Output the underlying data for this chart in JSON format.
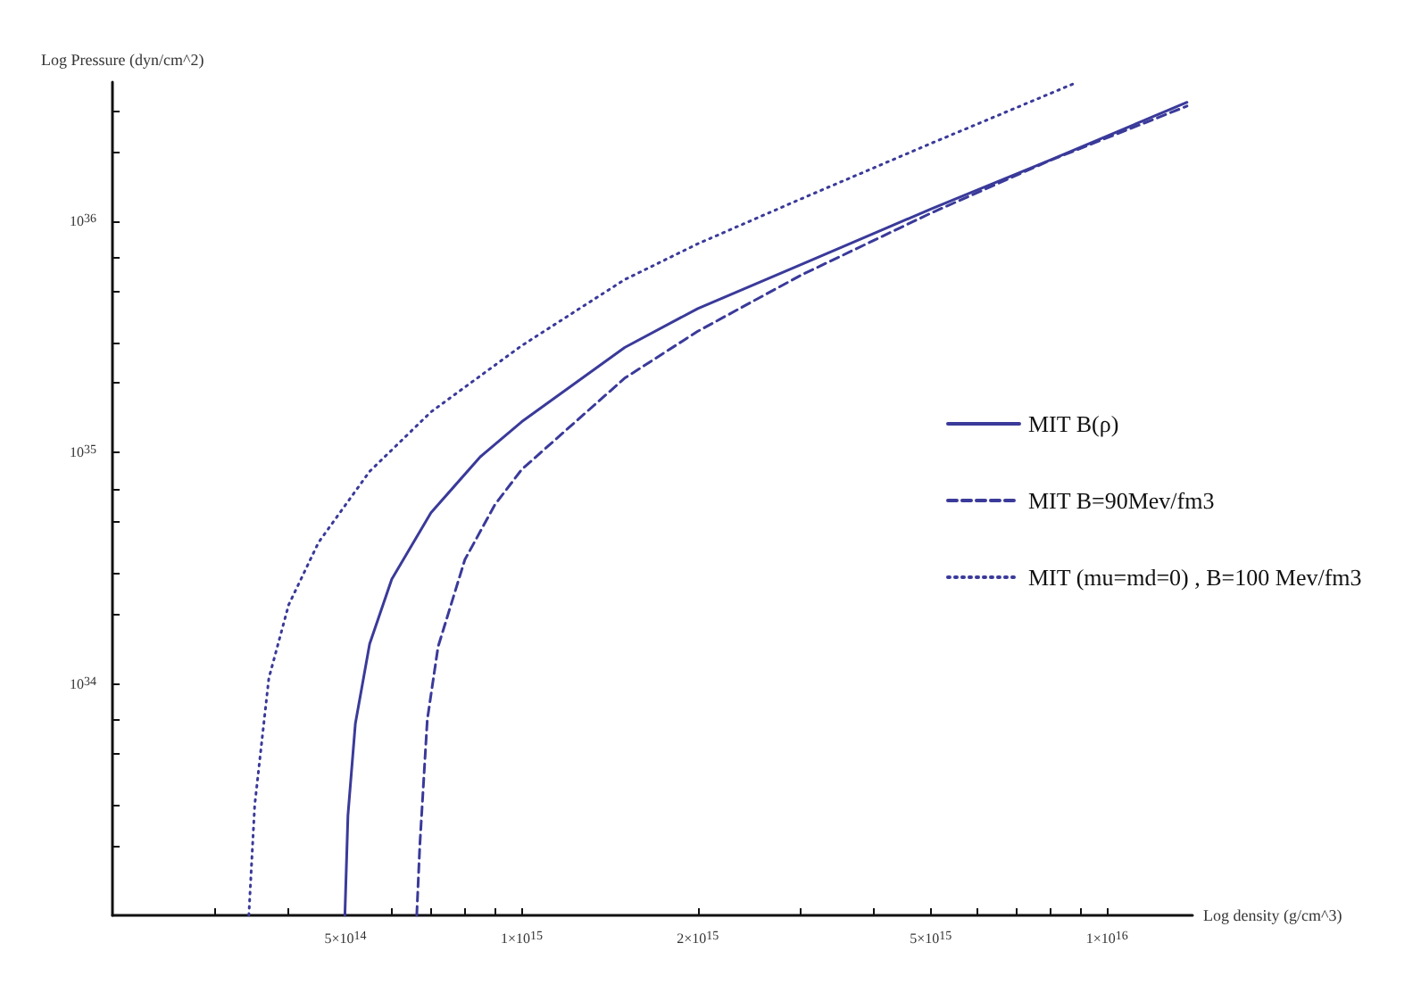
{
  "chart_data": {
    "type": "line",
    "xlabel": "Log density (g/cm^3)",
    "ylabel": "Log Pressure (dyn/cm^2)",
    "log": "xy",
    "grid": false,
    "legend": "right",
    "marker": "none",
    "xlim": [
      200000000000000.0,
      1.4e+16
    ],
    "xticks": [
      {
        "value": 300000000000000.0,
        "label": null
      },
      {
        "value": 400000000000000.0,
        "label": null
      },
      {
        "value": 500000000000000.0,
        "label": "5×10$^{14}$"
      },
      {
        "value": 600000000000000.0,
        "label": null
      },
      {
        "value": 700000000000000.0,
        "label": null
      },
      {
        "value": 800000000000000.0,
        "label": null
      },
      {
        "value": 900000000000000.0,
        "label": null
      },
      {
        "value": 1000000000000000.0,
        "label": "1×10$^{15}$"
      },
      {
        "value": 2000000000000000.0,
        "label": "2×10$^{15}$"
      },
      {
        "value": 3000000000000000.0,
        "label": null
      },
      {
        "value": 4000000000000000.0,
        "label": null
      },
      {
        "value": 5000000000000000.0,
        "label": "5×10$^{15}$"
      },
      {
        "value": 6000000000000000.0,
        "label": null
      },
      {
        "value": 7000000000000000.0,
        "label": null
      },
      {
        "value": 8000000000000000.0,
        "label": null
      },
      {
        "value": 9000000000000000.0,
        "label": null
      },
      {
        "value": 1e+16,
        "label": "1×10$^{16}$"
      }
    ],
    "ylim": [
      1e+33,
      4e+36
    ],
    "yticks": [
      {
        "value": 2e+33,
        "label": null
      },
      {
        "value": 3e+33,
        "label": null
      },
      {
        "value": 5e+33,
        "label": null
      },
      {
        "value": 7e+33,
        "label": null
      },
      {
        "value": 1e+34,
        "label": "10$^{34}$"
      },
      {
        "value": 2e+34,
        "label": null
      },
      {
        "value": 3e+34,
        "label": null
      },
      {
        "value": 5e+34,
        "label": null
      },
      {
        "value": 7e+34,
        "label": null
      },
      {
        "value": 1e+35,
        "label": "10$^{35}$"
      },
      {
        "value": 2e+35,
        "label": null
      },
      {
        "value": 3e+35,
        "label": null
      },
      {
        "value": 5e+35,
        "label": null
      },
      {
        "value": 7e+35,
        "label": null
      },
      {
        "value": 1e+36,
        "label": "10$^{36}$"
      },
      {
        "value": 2e+36,
        "label": null
      },
      {
        "value": 3e+36,
        "label": null
      }
    ],
    "series": [
      {
        "name": "MIT B(ρ)",
        "color": "#3a3a9a",
        "line_style": "solid",
        "x": [
          499000000000000.0,
          505000000000000.0,
          520000000000000.0,
          550000000000000.0,
          600000000000000.0,
          700000000000000.0,
          850000000000000.0,
          1000000000000000.0,
          1500000000000000.0,
          2000000000000000.0,
          3000000000000000.0,
          5000000000000000.0,
          8000000000000000.0,
          1.37e+16
        ],
        "values": [
          1e+33,
          2.7e+33,
          6.75e+33,
          1.49e+34,
          2.84e+34,
          5.5e+34,
          9.6e+34,
          1.36e+35,
          2.85e+35,
          4.2e+35,
          6.5e+35,
          1.13e+36,
          1.84e+36,
          3.27e+36
        ]
      },
      {
        "name": "MIT B=90Mev/fm3",
        "color": "#3a3a9a",
        "line_style": "dashed",
        "x": [
          662000000000000.0,
          670000000000000.0,
          690000000000000.0,
          720000000000000.0,
          800000000000000.0,
          900000000000000.0,
          1000000000000000.0,
          1500000000000000.0,
          2000000000000000.0,
          3000000000000000.0,
          5000000000000000.0,
          8000000000000000.0,
          1.37e+16
        ],
        "values": [
          1e+33,
          2e+33,
          7e+33,
          1.45e+34,
          3.45e+34,
          5.95e+34,
          8.45e+34,
          2.1e+35,
          3.35e+35,
          5.85e+35,
          1.085e+36,
          1.835e+36,
          3.15e+36
        ]
      },
      {
        "name": "MIT (mu=md=0) , B=100 Mev/fm3",
        "color": "#3a3a9a",
        "line_style": "dotted",
        "x": [
          342000000000000.0,
          350000000000000.0,
          370000000000000.0,
          400000000000000.0,
          450000000000000.0,
          550000000000000.0,
          700000000000000.0,
          1000000000000000.0,
          1500000000000000.0,
          2000000000000000.0,
          3000000000000000.0,
          5000000000000000.0,
          8800000000000000.0
        ],
        "values": [
          1e+33,
          3e+33,
          1.06e+34,
          2.2e+34,
          4.1e+34,
          8.3e+34,
          1.5e+35,
          2.9e+35,
          5.6e+35,
          8e+35,
          1.25e+36,
          2.17e+36,
          3.95e+36
        ]
      }
    ]
  }
}
